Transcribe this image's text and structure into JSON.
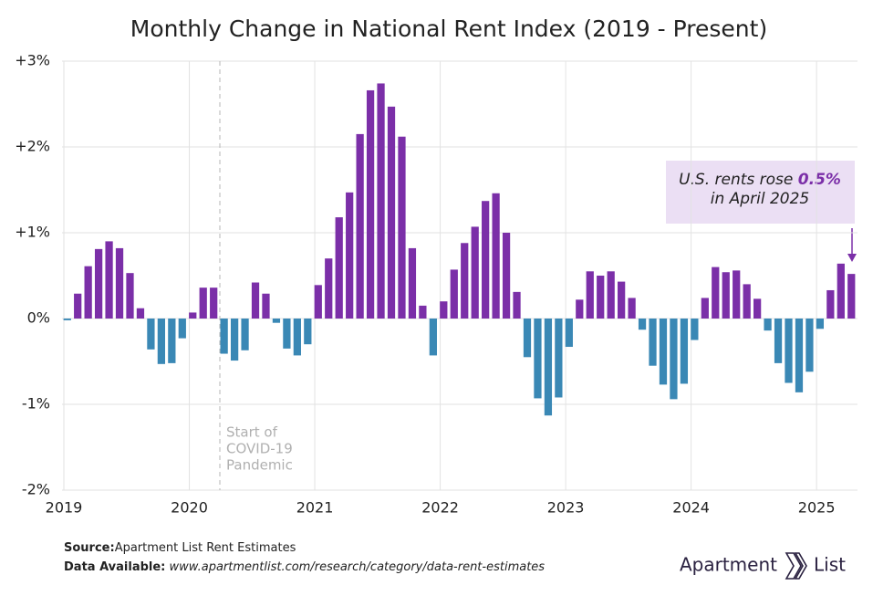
{
  "chart_data": {
    "type": "bar",
    "title": "Monthly Change in National Rent Index (2019 - Present)",
    "categories": [
      "2019",
      null,
      null,
      null,
      null,
      null,
      null,
      null,
      null,
      null,
      null,
      null,
      "2020",
      null,
      null,
      null,
      null,
      null,
      null,
      null,
      null,
      null,
      null,
      null,
      "2021",
      null,
      null,
      null,
      null,
      null,
      null,
      null,
      null,
      null,
      null,
      null,
      "2022",
      null,
      null,
      null,
      null,
      null,
      null,
      null,
      null,
      null,
      null,
      null,
      "2023",
      null,
      null,
      null,
      null,
      null,
      null,
      null,
      null,
      null,
      null,
      null,
      "2024",
      null,
      null,
      null,
      null,
      null,
      null,
      null,
      null,
      null,
      null,
      null,
      "2025",
      null,
      null,
      null
    ],
    "values": [
      -0.02,
      0.29,
      0.61,
      0.81,
      0.9,
      0.82,
      0.53,
      0.12,
      -0.36,
      -0.53,
      -0.52,
      -0.23,
      0.07,
      0.36,
      0.36,
      -0.41,
      -0.49,
      -0.37,
      0.42,
      0.29,
      -0.05,
      -0.35,
      -0.43,
      -0.3,
      0.39,
      0.7,
      1.18,
      1.47,
      2.15,
      2.66,
      2.74,
      2.47,
      2.12,
      0.82,
      0.15,
      -0.43,
      0.2,
      0.57,
      0.88,
      1.07,
      1.37,
      1.46,
      1.0,
      0.31,
      -0.45,
      -0.93,
      -1.13,
      -0.92,
      -0.33,
      0.22,
      0.55,
      0.5,
      0.55,
      0.43,
      0.24,
      -0.13,
      -0.55,
      -0.77,
      -0.94,
      -0.76,
      -0.25,
      0.24,
      0.6,
      0.54,
      0.56,
      0.4,
      0.23,
      -0.14,
      -0.52,
      -0.75,
      -0.86,
      -0.62,
      -0.12,
      0.33,
      0.64,
      0.52
    ],
    "color_positive": "#7b2fa8",
    "color_negative": "#3a88b5",
    "ylim": [
      -2,
      3
    ],
    "yticks": [
      {
        "value": -2,
        "label": "-2%"
      },
      {
        "value": -1,
        "label": "-1%"
      },
      {
        "value": 0,
        "label": "0%"
      },
      {
        "value": 1,
        "label": "+1%"
      },
      {
        "value": 2,
        "label": "+2%"
      },
      {
        "value": 3,
        "label": "+3%"
      }
    ],
    "grid": true,
    "event_note": [
      "Start of",
      "COVID-19",
      "Pandemic"
    ],
    "callout": {
      "before": "U.S. rents rose",
      "highlight": "0.5%",
      "after": "in April 2025"
    },
    "source_label": "Source:",
    "source": "Apartment List Rent Estimates",
    "data_label": "Data Available:",
    "data_url": "www.apartmentlist.com/research/category/data-rent-estimates",
    "logo": [
      "Apartment",
      "List"
    ]
  }
}
